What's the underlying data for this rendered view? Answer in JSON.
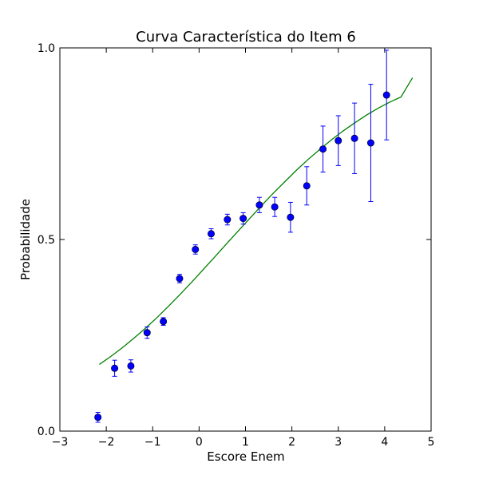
{
  "chart_data": {
    "type": "scatter",
    "title": "Curva Característica do Item 6",
    "xlabel": "Escore Enem",
    "ylabel": "Probabilidade",
    "xlim": [
      -3,
      5
    ],
    "ylim": [
      0,
      1
    ],
    "x_ticks": [
      -3,
      -2,
      -1,
      0,
      1,
      2,
      3,
      4,
      5
    ],
    "x_tick_labels": [
      "−3",
      "−2",
      "−1",
      "0",
      "1",
      "2",
      "3",
      "4",
      "5"
    ],
    "y_ticks": [
      0,
      0.5,
      1
    ],
    "y_tick_labels": [
      "0.0",
      "0.5",
      "1.0"
    ],
    "grid": false,
    "colors": {
      "points": "#0000ff",
      "errorbars": "#0000ff",
      "curve": "#008000"
    },
    "points": [
      {
        "x": -2.18,
        "y": 0.036,
        "err": 0.013
      },
      {
        "x": -1.82,
        "y": 0.164,
        "err": 0.021
      },
      {
        "x": -1.47,
        "y": 0.17,
        "err": 0.016
      },
      {
        "x": -1.12,
        "y": 0.257,
        "err": 0.015
      },
      {
        "x": -0.77,
        "y": 0.286,
        "err": 0.01
      },
      {
        "x": -0.42,
        "y": 0.398,
        "err": 0.011
      },
      {
        "x": -0.08,
        "y": 0.474,
        "err": 0.012
      },
      {
        "x": 0.26,
        "y": 0.515,
        "err": 0.013
      },
      {
        "x": 0.61,
        "y": 0.552,
        "err": 0.014
      },
      {
        "x": 0.95,
        "y": 0.555,
        "err": 0.015
      },
      {
        "x": 1.3,
        "y": 0.59,
        "err": 0.02
      },
      {
        "x": 1.63,
        "y": 0.585,
        "err": 0.025
      },
      {
        "x": 1.97,
        "y": 0.558,
        "err": 0.039
      },
      {
        "x": 2.32,
        "y": 0.64,
        "err": 0.05
      },
      {
        "x": 2.67,
        "y": 0.736,
        "err": 0.06
      },
      {
        "x": 3.0,
        "y": 0.758,
        "err": 0.065
      },
      {
        "x": 3.35,
        "y": 0.764,
        "err": 0.092
      },
      {
        "x": 3.7,
        "y": 0.752,
        "err": 0.153
      },
      {
        "x": 4.04,
        "y": 0.877,
        "err": 0.117
      }
    ],
    "curve": {
      "x": [
        -2.15,
        -1.9,
        -1.65,
        -1.4,
        -1.15,
        -0.9,
        -0.65,
        -0.4,
        -0.15,
        0.1,
        0.35,
        0.6,
        0.85,
        1.1,
        1.35,
        1.6,
        1.85,
        2.1,
        2.35,
        2.6,
        2.85,
        3.1,
        3.35,
        3.6,
        3.85,
        4.1,
        4.35,
        4.6
      ],
      "y": [
        0.174,
        0.195,
        0.218,
        0.243,
        0.269,
        0.297,
        0.327,
        0.358,
        0.39,
        0.423,
        0.456,
        0.49,
        0.523,
        0.556,
        0.589,
        0.621,
        0.651,
        0.681,
        0.709,
        0.735,
        0.76,
        0.783,
        0.804,
        0.824,
        0.842,
        0.858,
        0.872,
        0.922
      ]
    }
  }
}
